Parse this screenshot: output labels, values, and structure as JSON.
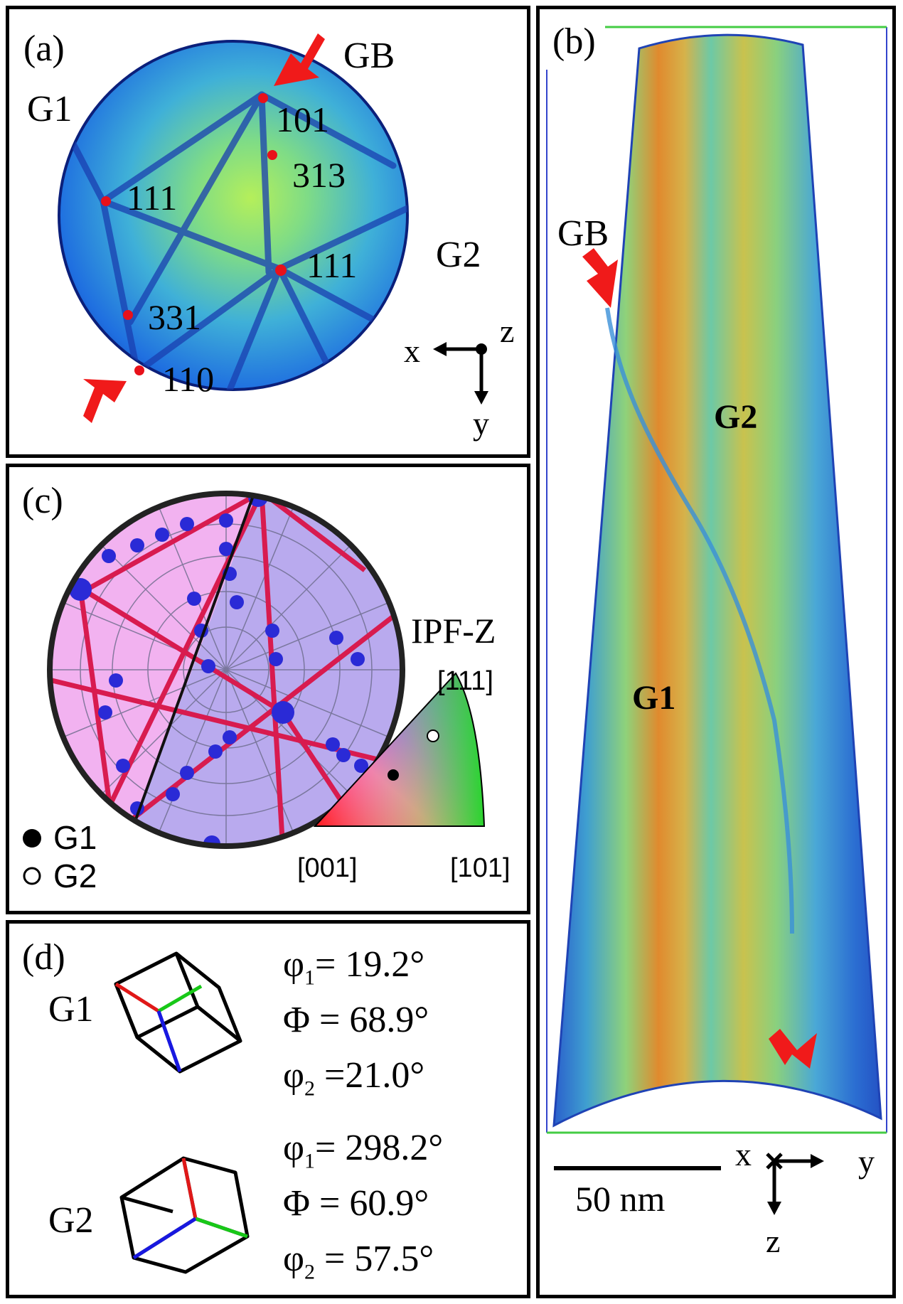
{
  "panel_a": {
    "label": "(a)",
    "gb_label": "GB",
    "grain1": "G1",
    "grain2": "G2",
    "poles": [
      "101",
      "313",
      "111",
      "111",
      "331",
      "110"
    ],
    "axes": {
      "x": "x",
      "y": "y",
      "z": "z"
    },
    "colors": {
      "pattern_bg": "#1e6fe0",
      "pattern_bright": "#9fe36a",
      "pole_dot": "#e8111a",
      "arrow": "#f01a1a"
    }
  },
  "panel_b": {
    "label": "(b)",
    "gb_label": "GB",
    "grain1": "G1",
    "grain2": "G2",
    "scale_bar": "50 nm",
    "axes": {
      "x": "x",
      "y": "y",
      "z": "z"
    },
    "colors": {
      "tip_low": "#2563c9",
      "tip_mid": "#5cc4a8",
      "tip_high": "#e07826",
      "box_side": "#3344cc",
      "box_edge": "#44cc44"
    }
  },
  "panel_c": {
    "label": "(c)",
    "ipf_label": "IPF-Z",
    "triangle_labels": {
      "top": "[111]",
      "left": "[001]",
      "right": "[101]"
    },
    "legend": [
      {
        "symbol": "filled-circle",
        "label": "G1"
      },
      {
        "symbol": "open-circle",
        "label": "G2"
      }
    ],
    "colors": {
      "g1_region": "#f2b2f0",
      "g2_region": "#b9aaee",
      "trace": "#d81b4f",
      "pole": "#2a2ad6"
    }
  },
  "panel_d": {
    "label": "(d)",
    "grains": [
      {
        "name": "G1",
        "angles": [
          {
            "sym": "φ",
            "sub": "1",
            "text": "= 19.2°"
          },
          {
            "sym": "Φ",
            "sub": "",
            "text": " = 68.9°"
          },
          {
            "sym": "φ",
            "sub": "2",
            "text": " =21.0°"
          }
        ]
      },
      {
        "name": "G2",
        "angles": [
          {
            "sym": "φ",
            "sub": "1",
            "text": "= 298.2°"
          },
          {
            "sym": "Φ",
            "sub": "",
            "text": " = 60.9°"
          },
          {
            "sym": "φ",
            "sub": "2",
            "text": " = 57.5°"
          }
        ]
      }
    ]
  }
}
